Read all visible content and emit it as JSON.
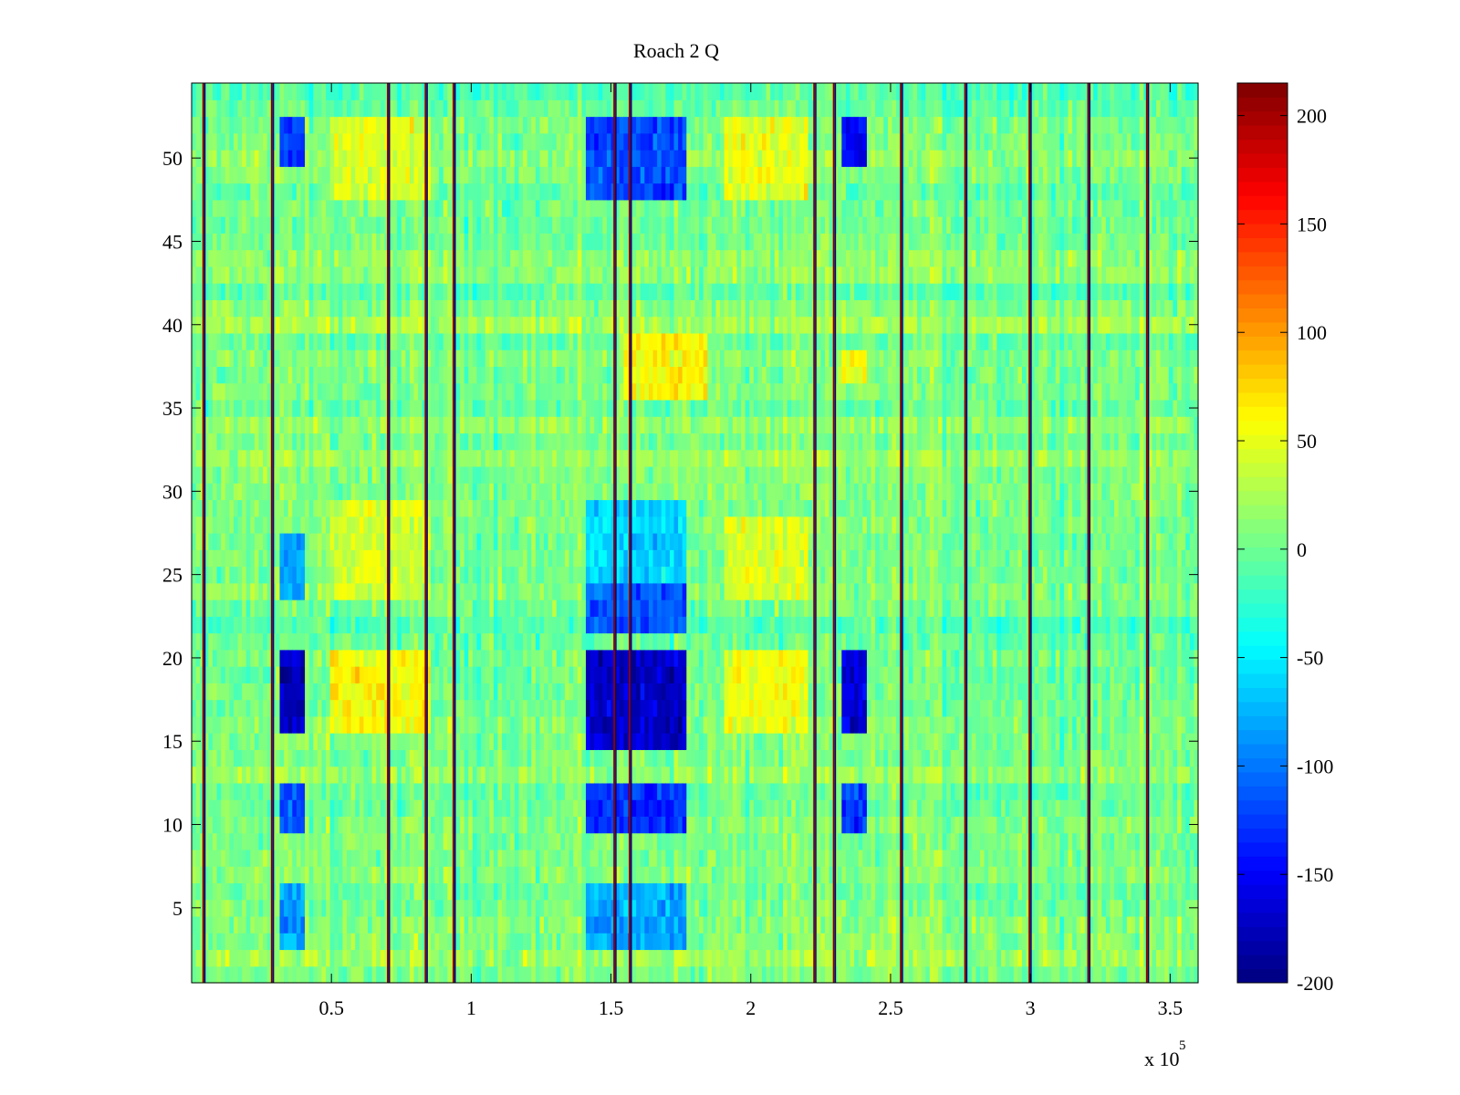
{
  "chart_data": {
    "type": "heatmap",
    "title": "Roach 2 Q",
    "xlabel": "",
    "ylabel": "",
    "x_exponent_label": "x 10",
    "x_exponent": "5",
    "xlim": [
      0,
      3.6
    ],
    "ylim": [
      0.5,
      54.5
    ],
    "xticks": [
      0.5,
      1,
      1.5,
      2,
      2.5,
      3,
      3.5
    ],
    "xtick_labels": [
      "0.5",
      "1",
      "1.5",
      "2",
      "2.5",
      "3",
      "3.5"
    ],
    "yticks": [
      5,
      10,
      15,
      20,
      25,
      30,
      35,
      40,
      45,
      50
    ],
    "ytick_labels": [
      "5",
      "10",
      "15",
      "20",
      "25",
      "30",
      "35",
      "40",
      "45",
      "50"
    ],
    "grid": false,
    "rows": 54,
    "colorbar": {
      "colormap": "jet",
      "clim": [
        -200,
        215
      ],
      "ticks": [
        -200,
        -150,
        -100,
        -50,
        0,
        50,
        100,
        150,
        200
      ],
      "tick_labels": [
        "-200",
        "-150",
        "-100",
        "-50",
        "0",
        "50",
        "100",
        "150",
        "200"
      ]
    },
    "background_value": 5,
    "vertical_spike_lines_x": [
      0.045,
      0.29,
      0.705,
      0.84,
      0.94,
      1.515,
      1.57,
      2.23,
      2.3,
      2.54,
      2.77,
      3.0,
      3.21,
      3.42
    ],
    "negative_blocks": [
      {
        "x": [
          0.31,
          0.41
        ],
        "rows": [
          16,
          20
        ],
        "value": -170
      },
      {
        "x": [
          0.31,
          0.41
        ],
        "rows": [
          10,
          12
        ],
        "value": -120
      },
      {
        "x": [
          0.31,
          0.41
        ],
        "rows": [
          50,
          52
        ],
        "value": -130
      },
      {
        "x": [
          0.31,
          0.41
        ],
        "rows": [
          24,
          27
        ],
        "value": -80
      },
      {
        "x": [
          0.31,
          0.41
        ],
        "rows": [
          3,
          6
        ],
        "value": -80
      },
      {
        "x": [
          1.41,
          1.77
        ],
        "rows": [
          15,
          20
        ],
        "value": -170
      },
      {
        "x": [
          1.41,
          1.77
        ],
        "rows": [
          10,
          12
        ],
        "value": -130
      },
      {
        "x": [
          1.41,
          1.77
        ],
        "rows": [
          48,
          52
        ],
        "value": -120
      },
      {
        "x": [
          1.41,
          1.77
        ],
        "rows": [
          22,
          24
        ],
        "value": -110
      },
      {
        "x": [
          1.41,
          1.77
        ],
        "rows": [
          3,
          6
        ],
        "value": -80
      },
      {
        "x": [
          1.41,
          1.77
        ],
        "rows": [
          25,
          29
        ],
        "value": -60
      },
      {
        "x": [
          2.33,
          2.42
        ],
        "rows": [
          16,
          20
        ],
        "value": -160
      },
      {
        "x": [
          2.33,
          2.42
        ],
        "rows": [
          50,
          52
        ],
        "value": -150
      },
      {
        "x": [
          2.33,
          2.42
        ],
        "rows": [
          10,
          12
        ],
        "value": -120
      }
    ],
    "positive_blocks": [
      {
        "x": [
          0.5,
          0.85
        ],
        "rows": [
          16,
          20
        ],
        "value": 60
      },
      {
        "x": [
          0.5,
          0.85
        ],
        "rows": [
          48,
          52
        ],
        "value": 45
      },
      {
        "x": [
          0.5,
          0.85
        ],
        "rows": [
          24,
          29
        ],
        "value": 40
      },
      {
        "x": [
          1.55,
          1.85
        ],
        "rows": [
          36,
          39
        ],
        "value": 60
      },
      {
        "x": [
          1.9,
          2.2
        ],
        "rows": [
          16,
          20
        ],
        "value": 55
      },
      {
        "x": [
          1.9,
          2.2
        ],
        "rows": [
          48,
          52
        ],
        "value": 50
      },
      {
        "x": [
          1.9,
          2.2
        ],
        "rows": [
          24,
          28
        ],
        "value": 45
      },
      {
        "x": [
          2.33,
          2.42
        ],
        "rows": [
          37,
          38
        ],
        "value": 60
      }
    ]
  }
}
